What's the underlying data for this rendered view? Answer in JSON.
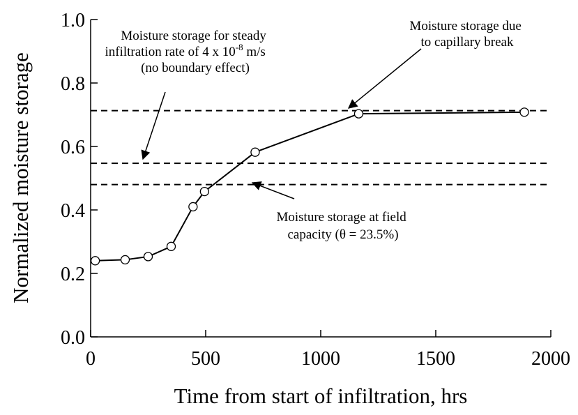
{
  "chart_data": {
    "type": "line",
    "xlabel": "Time from start of infiltration, hrs",
    "ylabel": "Normalized moisture storage",
    "x": [
      20,
      150,
      250,
      350,
      445,
      495,
      715,
      1165,
      1885
    ],
    "series": [
      {
        "color": "#000000",
        "values": [
          0.24,
          0.243,
          0.253,
          0.285,
          0.41,
          0.458,
          0.582,
          0.703,
          0.708
        ]
      }
    ],
    "xlim": [
      0,
      2000
    ],
    "xticks": [
      0,
      500,
      1000,
      1500,
      2000
    ],
    "ylim": [
      0,
      1
    ],
    "yticks": [
      {
        "value": 0,
        "label": "0.0"
      },
      {
        "value": 0.2,
        "label": "0.2"
      },
      {
        "value": 0.4,
        "label": "0.4"
      },
      {
        "value": 0.6,
        "label": "0.6"
      },
      {
        "value": 0.8,
        "label": "0.8"
      },
      {
        "value": 1,
        "label": "1.0"
      }
    ],
    "reference_lines": [
      0.713,
      0.547,
      0.48
    ],
    "annotations": [
      {
        "lines": [
          "Moisture storage for steady",
          "infiltration rate of 4 x 10",
          "-8",
          " m/s",
          "(no boundary effect)"
        ]
      },
      {
        "lines": [
          "Moisture storage due",
          "to capillary break"
        ]
      },
      {
        "lines": [
          "Moisture storage at field",
          "capacity (θ = 23.5%)"
        ]
      }
    ]
  }
}
